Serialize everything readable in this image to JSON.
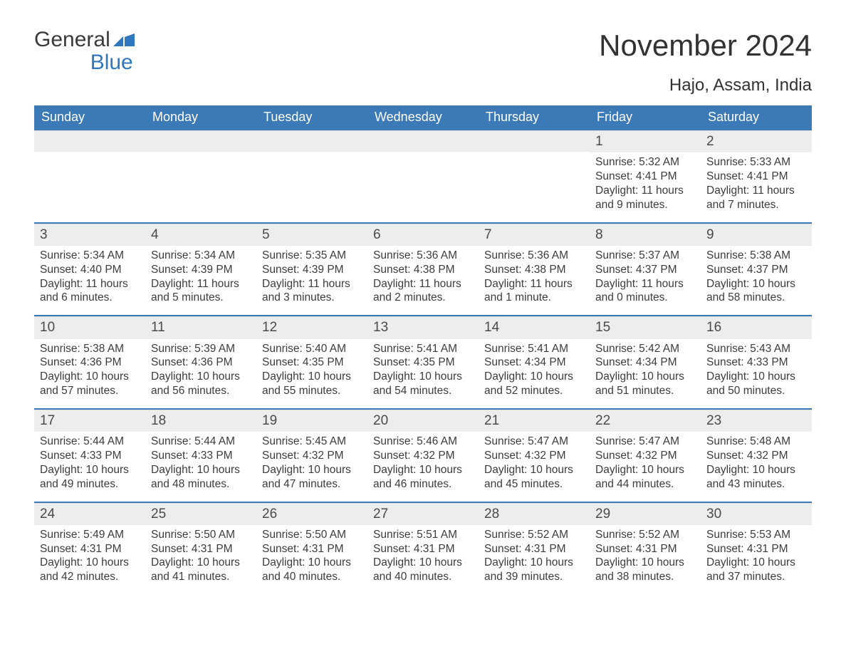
{
  "logo": {
    "text_top": "General",
    "text_bottom": "Blue",
    "flag_color": "#2f78bf"
  },
  "header": {
    "month_title": "November 2024",
    "location": "Hajo, Assam, India"
  },
  "colors": {
    "header_bg": "#3b79b7",
    "header_text": "#ffffff",
    "daynum_bg": "#eceded",
    "row_border": "#3b79b7",
    "body_text": "#3c3c3c",
    "title_text": "#323232"
  },
  "weekdays": [
    "Sunday",
    "Monday",
    "Tuesday",
    "Wednesday",
    "Thursday",
    "Friday",
    "Saturday"
  ],
  "weeks": [
    [
      {
        "day": null
      },
      {
        "day": null
      },
      {
        "day": null
      },
      {
        "day": null
      },
      {
        "day": null
      },
      {
        "day": "1",
        "sunrise": "Sunrise: 5:32 AM",
        "sunset": "Sunset: 4:41 PM",
        "daylight1": "Daylight: 11 hours",
        "daylight2": "and 9 minutes."
      },
      {
        "day": "2",
        "sunrise": "Sunrise: 5:33 AM",
        "sunset": "Sunset: 4:41 PM",
        "daylight1": "Daylight: 11 hours",
        "daylight2": "and 7 minutes."
      }
    ],
    [
      {
        "day": "3",
        "sunrise": "Sunrise: 5:34 AM",
        "sunset": "Sunset: 4:40 PM",
        "daylight1": "Daylight: 11 hours",
        "daylight2": "and 6 minutes."
      },
      {
        "day": "4",
        "sunrise": "Sunrise: 5:34 AM",
        "sunset": "Sunset: 4:39 PM",
        "daylight1": "Daylight: 11 hours",
        "daylight2": "and 5 minutes."
      },
      {
        "day": "5",
        "sunrise": "Sunrise: 5:35 AM",
        "sunset": "Sunset: 4:39 PM",
        "daylight1": "Daylight: 11 hours",
        "daylight2": "and 3 minutes."
      },
      {
        "day": "6",
        "sunrise": "Sunrise: 5:36 AM",
        "sunset": "Sunset: 4:38 PM",
        "daylight1": "Daylight: 11 hours",
        "daylight2": "and 2 minutes."
      },
      {
        "day": "7",
        "sunrise": "Sunrise: 5:36 AM",
        "sunset": "Sunset: 4:38 PM",
        "daylight1": "Daylight: 11 hours",
        "daylight2": "and 1 minute."
      },
      {
        "day": "8",
        "sunrise": "Sunrise: 5:37 AM",
        "sunset": "Sunset: 4:37 PM",
        "daylight1": "Daylight: 11 hours",
        "daylight2": "and 0 minutes."
      },
      {
        "day": "9",
        "sunrise": "Sunrise: 5:38 AM",
        "sunset": "Sunset: 4:37 PM",
        "daylight1": "Daylight: 10 hours",
        "daylight2": "and 58 minutes."
      }
    ],
    [
      {
        "day": "10",
        "sunrise": "Sunrise: 5:38 AM",
        "sunset": "Sunset: 4:36 PM",
        "daylight1": "Daylight: 10 hours",
        "daylight2": "and 57 minutes."
      },
      {
        "day": "11",
        "sunrise": "Sunrise: 5:39 AM",
        "sunset": "Sunset: 4:36 PM",
        "daylight1": "Daylight: 10 hours",
        "daylight2": "and 56 minutes."
      },
      {
        "day": "12",
        "sunrise": "Sunrise: 5:40 AM",
        "sunset": "Sunset: 4:35 PM",
        "daylight1": "Daylight: 10 hours",
        "daylight2": "and 55 minutes."
      },
      {
        "day": "13",
        "sunrise": "Sunrise: 5:41 AM",
        "sunset": "Sunset: 4:35 PM",
        "daylight1": "Daylight: 10 hours",
        "daylight2": "and 54 minutes."
      },
      {
        "day": "14",
        "sunrise": "Sunrise: 5:41 AM",
        "sunset": "Sunset: 4:34 PM",
        "daylight1": "Daylight: 10 hours",
        "daylight2": "and 52 minutes."
      },
      {
        "day": "15",
        "sunrise": "Sunrise: 5:42 AM",
        "sunset": "Sunset: 4:34 PM",
        "daylight1": "Daylight: 10 hours",
        "daylight2": "and 51 minutes."
      },
      {
        "day": "16",
        "sunrise": "Sunrise: 5:43 AM",
        "sunset": "Sunset: 4:33 PM",
        "daylight1": "Daylight: 10 hours",
        "daylight2": "and 50 minutes."
      }
    ],
    [
      {
        "day": "17",
        "sunrise": "Sunrise: 5:44 AM",
        "sunset": "Sunset: 4:33 PM",
        "daylight1": "Daylight: 10 hours",
        "daylight2": "and 49 minutes."
      },
      {
        "day": "18",
        "sunrise": "Sunrise: 5:44 AM",
        "sunset": "Sunset: 4:33 PM",
        "daylight1": "Daylight: 10 hours",
        "daylight2": "and 48 minutes."
      },
      {
        "day": "19",
        "sunrise": "Sunrise: 5:45 AM",
        "sunset": "Sunset: 4:32 PM",
        "daylight1": "Daylight: 10 hours",
        "daylight2": "and 47 minutes."
      },
      {
        "day": "20",
        "sunrise": "Sunrise: 5:46 AM",
        "sunset": "Sunset: 4:32 PM",
        "daylight1": "Daylight: 10 hours",
        "daylight2": "and 46 minutes."
      },
      {
        "day": "21",
        "sunrise": "Sunrise: 5:47 AM",
        "sunset": "Sunset: 4:32 PM",
        "daylight1": "Daylight: 10 hours",
        "daylight2": "and 45 minutes."
      },
      {
        "day": "22",
        "sunrise": "Sunrise: 5:47 AM",
        "sunset": "Sunset: 4:32 PM",
        "daylight1": "Daylight: 10 hours",
        "daylight2": "and 44 minutes."
      },
      {
        "day": "23",
        "sunrise": "Sunrise: 5:48 AM",
        "sunset": "Sunset: 4:32 PM",
        "daylight1": "Daylight: 10 hours",
        "daylight2": "and 43 minutes."
      }
    ],
    [
      {
        "day": "24",
        "sunrise": "Sunrise: 5:49 AM",
        "sunset": "Sunset: 4:31 PM",
        "daylight1": "Daylight: 10 hours",
        "daylight2": "and 42 minutes."
      },
      {
        "day": "25",
        "sunrise": "Sunrise: 5:50 AM",
        "sunset": "Sunset: 4:31 PM",
        "daylight1": "Daylight: 10 hours",
        "daylight2": "and 41 minutes."
      },
      {
        "day": "26",
        "sunrise": "Sunrise: 5:50 AM",
        "sunset": "Sunset: 4:31 PM",
        "daylight1": "Daylight: 10 hours",
        "daylight2": "and 40 minutes."
      },
      {
        "day": "27",
        "sunrise": "Sunrise: 5:51 AM",
        "sunset": "Sunset: 4:31 PM",
        "daylight1": "Daylight: 10 hours",
        "daylight2": "and 40 minutes."
      },
      {
        "day": "28",
        "sunrise": "Sunrise: 5:52 AM",
        "sunset": "Sunset: 4:31 PM",
        "daylight1": "Daylight: 10 hours",
        "daylight2": "and 39 minutes."
      },
      {
        "day": "29",
        "sunrise": "Sunrise: 5:52 AM",
        "sunset": "Sunset: 4:31 PM",
        "daylight1": "Daylight: 10 hours",
        "daylight2": "and 38 minutes."
      },
      {
        "day": "30",
        "sunrise": "Sunrise: 5:53 AM",
        "sunset": "Sunset: 4:31 PM",
        "daylight1": "Daylight: 10 hours",
        "daylight2": "and 37 minutes."
      }
    ]
  ]
}
